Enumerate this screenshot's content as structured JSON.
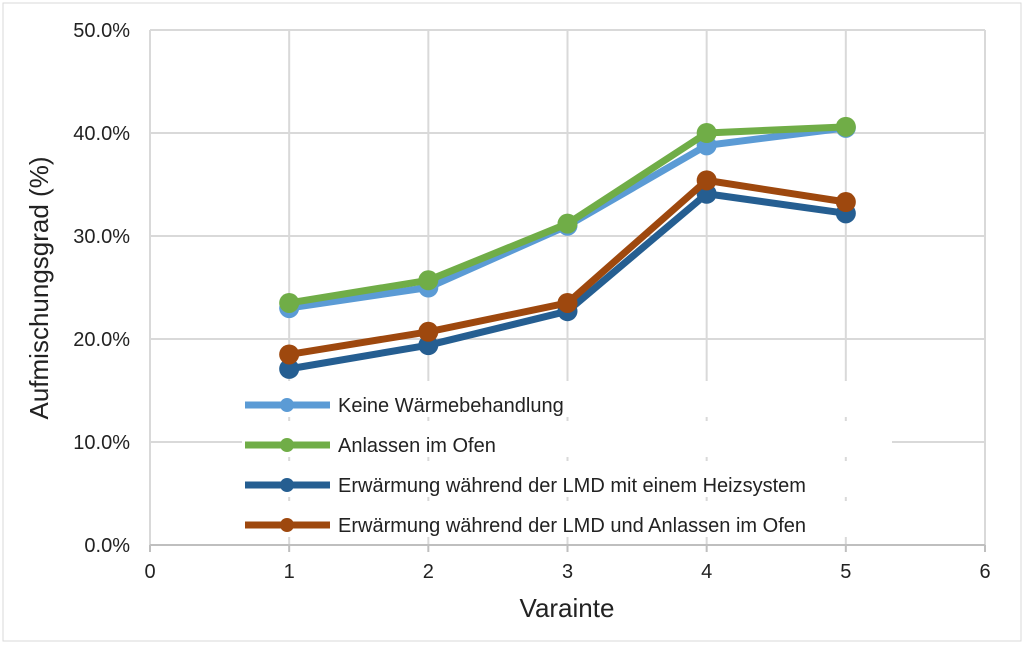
{
  "chart_data": {
    "type": "line",
    "title": "",
    "xlabel": "Varainte",
    "ylabel": "Aufmischungsgrad (%)",
    "xlim": [
      0,
      6
    ],
    "ylim": [
      0,
      50
    ],
    "xticks": [
      "0",
      "1",
      "2",
      "3",
      "4",
      "5",
      "6"
    ],
    "yticks": [
      "0.0%",
      "10.0%",
      "20.0%",
      "30.0%",
      "40.0%",
      "50.0%"
    ],
    "grid": true,
    "legend_position": "bottom-left-inside",
    "x": [
      1,
      2,
      3,
      4,
      5
    ],
    "series": [
      {
        "name": " Keine Wärmebehandlung",
        "color": "#5b9bd5",
        "values": [
          23.0,
          25.0,
          31.0,
          38.8,
          40.5
        ]
      },
      {
        "name": "Anlassen im Ofen",
        "color": "#70ad47",
        "values": [
          23.5,
          25.7,
          31.2,
          40.0,
          40.6
        ]
      },
      {
        "name": "Erwärmung während der LMD mit einem Heizsystem",
        "color": "#255e91",
        "values": [
          17.1,
          19.4,
          22.7,
          34.1,
          32.2
        ]
      },
      {
        "name": "Erwärmung während der LMD und Anlassen im Ofen",
        "color": "#9e480e",
        "values": [
          18.5,
          20.7,
          23.5,
          35.4,
          33.3
        ]
      }
    ]
  }
}
